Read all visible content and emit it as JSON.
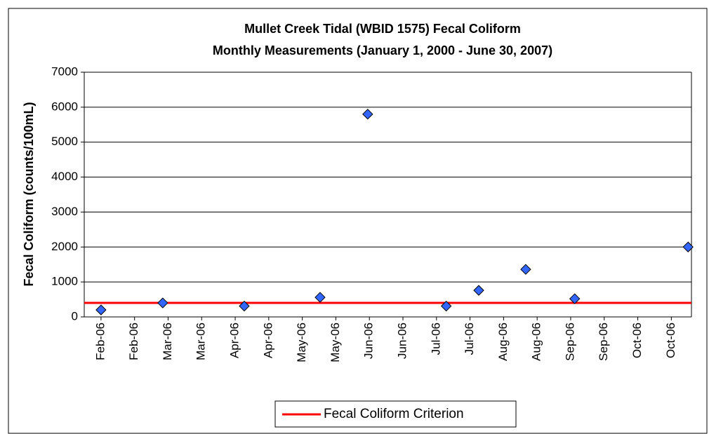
{
  "chart_data": {
    "type": "scatter",
    "title": [
      "Mullet Creek Tidal (WBID 1575) Fecal Coliform",
      "Monthly Measurements (January 1, 2000 - June 30, 2007)"
    ],
    "y_label": "Fecal Coliform (counts/100mL)",
    "series": [
      {
        "color": "#3366ff",
        "x": [
          0,
          1.84,
          4.27,
          6.53,
          7.95,
          10.29,
          11.26,
          12.66,
          14.12,
          17.5
        ],
        "values": [
          200,
          400,
          310,
          560,
          5800,
          310,
          760,
          1360,
          520,
          2000
        ]
      }
    ],
    "reference_lines": [
      {
        "name": "Fecal Coliform Criterion",
        "value": 400,
        "color": "#ff0000"
      }
    ],
    "xlim": [
      -0.5,
      17.6
    ],
    "xticks": [
      {
        "value": 0,
        "label": "Feb-06"
      },
      {
        "value": 1,
        "label": "Feb-06"
      },
      {
        "value": 2,
        "label": "Mar-06"
      },
      {
        "value": 3,
        "label": "Mar-06"
      },
      {
        "value": 4,
        "label": "Apr-06"
      },
      {
        "value": 5,
        "label": "Apr-06"
      },
      {
        "value": 6,
        "label": "May-06"
      },
      {
        "value": 7,
        "label": "May-06"
      },
      {
        "value": 8,
        "label": "Jun-06"
      },
      {
        "value": 9,
        "label": "Jun-06"
      },
      {
        "value": 10,
        "label": "Jul-06"
      },
      {
        "value": 11,
        "label": "Jul-06"
      },
      {
        "value": 12,
        "label": "Aug-06"
      },
      {
        "value": 13,
        "label": "Aug-06"
      },
      {
        "value": 14,
        "label": "Sep-06"
      },
      {
        "value": 15,
        "label": "Sep-06"
      },
      {
        "value": 16,
        "label": "Oct-06"
      },
      {
        "value": 17,
        "label": "Oct-06"
      }
    ],
    "ylim": [
      0,
      7000
    ],
    "yticks": [
      0,
      1000,
      2000,
      3000,
      4000,
      5000,
      6000,
      7000
    ],
    "grid": true,
    "legend": "bottom"
  }
}
